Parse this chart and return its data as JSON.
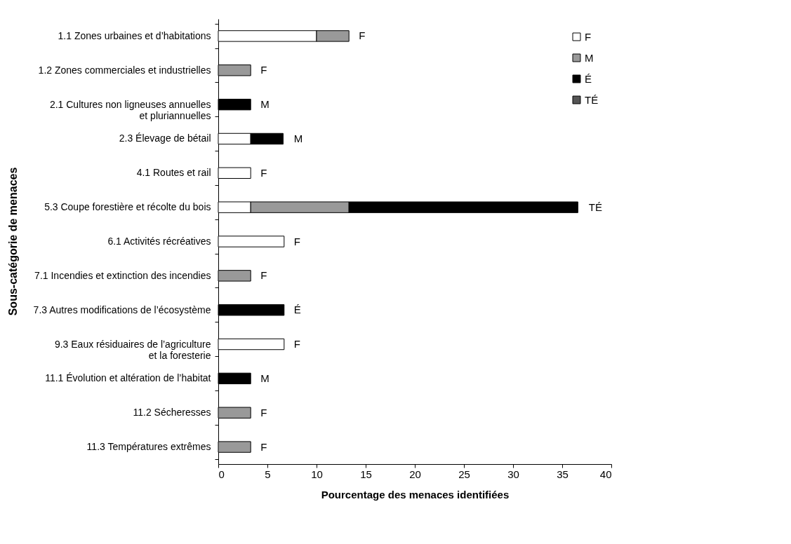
{
  "chart_data": {
    "type": "bar",
    "orientation": "horizontal",
    "stacked": true,
    "categories": [
      "1.1 Zones urbaines et d’habitations",
      "1.2 Zones commerciales et industrielles",
      "2.1 Cultures non ligneuses annuelles\net pluriannuelles",
      "2.3 Élevage de bétail",
      "4.1 Routes et rail",
      "5.3 Coupe forestière et récolte du bois",
      "6.1 Activités récréatives",
      "7.1 Incendies et extinction des incendies",
      "7.3 Autres modifications de l’écosystème",
      "9.3 Eaux résiduaires de l’agriculture\net la foresterie",
      "11.1 Évolution et altération de l’habitat",
      "11.2 Sécheresses",
      "11.3 Températures extrêmes"
    ],
    "series": [
      {
        "name": "F",
        "color": "#ffffff",
        "values": [
          10,
          null,
          null,
          3.3,
          3.3,
          3.3,
          6.7,
          null,
          null,
          6.7,
          null,
          null,
          null
        ]
      },
      {
        "name": "M",
        "color": "#999999",
        "values": [
          3.3,
          3.3,
          null,
          null,
          null,
          10,
          null,
          3.3,
          null,
          null,
          null,
          3.3,
          3.3
        ]
      },
      {
        "name": "É",
        "color": "#000000",
        "values": [
          null,
          null,
          3.3,
          3.3,
          null,
          23.3,
          null,
          null,
          6.7,
          null,
          3.3,
          null,
          null
        ]
      },
      {
        "name": "TÉ",
        "color": "#555555",
        "values": [
          null,
          null,
          null,
          null,
          null,
          null,
          null,
          null,
          null,
          null,
          null,
          null,
          null
        ]
      }
    ],
    "xlabel": "Pourcentage des menaces identifiées",
    "ylabel": "Sous-catégorie de menaces",
    "xlim": [
      0,
      40
    ],
    "xticks": [
      0,
      5,
      10,
      15,
      20,
      25,
      30,
      35,
      40
    ],
    "legend": "top right",
    "annotations": [
      {
        "text": "F",
        "x": 13.3,
        "y": "1.1 Zones urbaines et d’habitations"
      },
      {
        "text": "F",
        "x": 3.3,
        "y": "1.2 Zones commerciales et industrielles"
      },
      {
        "text": "M",
        "x": 3.3,
        "y": "2.1 Cultures non ligneuses annuelles\net pluriannuelles"
      },
      {
        "text": "M",
        "x": 6.7,
        "y": "2.3 Élevage de bétail"
      },
      {
        "text": "F",
        "x": 3.3,
        "y": "4.1 Routes et rail"
      },
      {
        "text": "TÉ",
        "x": 36.7,
        "y": "5.3 Coupe forestière et récolte du bois"
      },
      {
        "text": "F",
        "x": 6.7,
        "y": "6.1 Activités récréatives"
      },
      {
        "text": "F",
        "x": 3.3,
        "y": "7.1 Incendies et extinction des incendies"
      },
      {
        "text": "É",
        "x": 6.7,
        "y": "7.3 Autres modifications de l’écosystème"
      },
      {
        "text": "F",
        "x": 6.7,
        "y": "9.3 Eaux résiduaires de l’agriculture\net la foresterie"
      },
      {
        "text": "M",
        "x": 3.3,
        "y": "11.1 Évolution et altération de l’habitat"
      },
      {
        "text": "F",
        "x": 3.3,
        "y": "11.2 Sécheresses"
      },
      {
        "text": "F",
        "x": 3.3,
        "y": "11.3 Températures extrêmes"
      }
    ]
  }
}
